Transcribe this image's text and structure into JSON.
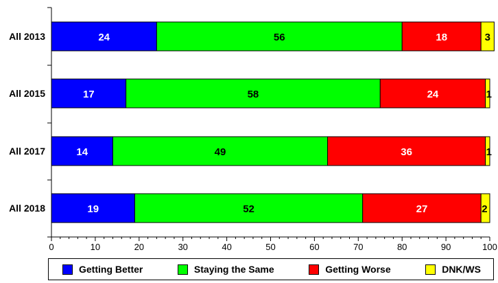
{
  "chart_data": {
    "type": "bar",
    "orientation": "horizontal",
    "stacked": true,
    "categories": [
      "All 2013",
      "All 2015",
      "All 2017",
      "All 2018"
    ],
    "series": [
      {
        "name": "Getting Better",
        "color": "#0000ff",
        "label_color": "#ffffff",
        "values": [
          24,
          17,
          14,
          19
        ]
      },
      {
        "name": "Staying the Same",
        "color": "#00ff00",
        "label_color": "#000000",
        "values": [
          56,
          58,
          49,
          52
        ]
      },
      {
        "name": "Getting Worse",
        "color": "#ff0000",
        "label_color": "#ffffff",
        "values": [
          18,
          24,
          36,
          27
        ]
      },
      {
        "name": "DNK/WS",
        "color": "#ffff00",
        "label_color": "#000000",
        "values": [
          3,
          1,
          1,
          2
        ]
      }
    ],
    "xlim": [
      0,
      100
    ],
    "xticks": [
      0,
      10,
      20,
      30,
      40,
      50,
      60,
      70,
      80,
      90,
      100
    ],
    "title": "",
    "xlabel": "",
    "ylabel": "",
    "grid": false,
    "legend_position": "bottom"
  }
}
